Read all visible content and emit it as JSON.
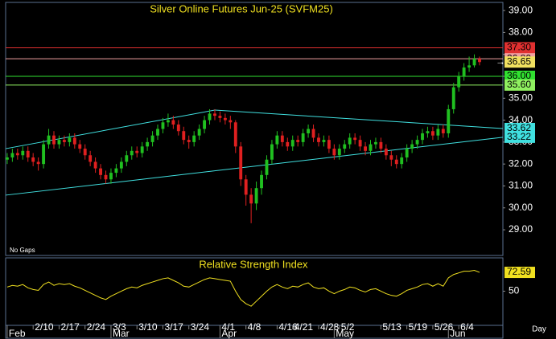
{
  "chart_data": {
    "type": "candlestick",
    "title": "Silver Online Futures Jun-25 (SVFM25)",
    "note": "No Gaps",
    "x_label": "Day",
    "xlim": [
      -0.3,
      95.5
    ],
    "date_ticks": [
      {
        "value": 5,
        "label": "2/10"
      },
      {
        "value": 10,
        "label": "2/17"
      },
      {
        "value": 15,
        "label": "2/24"
      },
      {
        "value": 20,
        "label": "3/3"
      },
      {
        "value": 25,
        "label": "3/10"
      },
      {
        "value": 30,
        "label": "3/17"
      },
      {
        "value": 35,
        "label": "3/24"
      },
      {
        "value": 41,
        "label": "4/1"
      },
      {
        "value": 46,
        "label": "4/8"
      },
      {
        "value": 52,
        "label": "4/16"
      },
      {
        "value": 55,
        "label": "4/21"
      },
      {
        "value": 60,
        "label": "4/28"
      },
      {
        "value": 64,
        "label": "5/2"
      },
      {
        "value": 72,
        "label": "5/13"
      },
      {
        "value": 77,
        "label": "5/19"
      },
      {
        "value": 82,
        "label": "5/26"
      },
      {
        "value": 87,
        "label": "6/4"
      }
    ],
    "month_ticks": [
      {
        "value": 0,
        "label": "Feb"
      },
      {
        "value": 20,
        "label": "Mar"
      },
      {
        "value": 41,
        "label": "Apr"
      },
      {
        "value": 63,
        "label": "May"
      },
      {
        "value": 85,
        "label": "Jun"
      }
    ],
    "ylim": [
      27.83,
      39.37
    ],
    "yticks": [
      {
        "value": 39,
        "label": "39.00"
      },
      {
        "value": 38,
        "label": "38.00"
      },
      {
        "value": 37,
        "label": "37.00"
      },
      {
        "value": 36,
        "label": "36.00"
      },
      {
        "value": 35,
        "label": "35.00"
      },
      {
        "value": 34,
        "label": "34.00"
      },
      {
        "value": 33,
        "label": "33.00"
      },
      {
        "value": 32,
        "label": "32.00"
      },
      {
        "value": 31,
        "label": "31.00"
      },
      {
        "value": 30,
        "label": "30.00"
      },
      {
        "value": 29,
        "label": "29.00"
      }
    ],
    "up_color": "#20c020",
    "down_color": "#e02020",
    "open": [
      32.2,
      32.3,
      32.5,
      32.4,
      32.6,
      32.3,
      32.1,
      32.0,
      32.9,
      33.3,
      32.9,
      33.1,
      33.0,
      33.2,
      32.9,
      32.7,
      32.4,
      32.1,
      31.8,
      31.5,
      31.3,
      31.6,
      31.8,
      32.1,
      32.4,
      32.6,
      32.5,
      32.8,
      33.0,
      33.3,
      33.6,
      33.9,
      34.0,
      33.8,
      33.5,
      33.1,
      33.0,
      33.3,
      33.6,
      34.0,
      34.3,
      34.2,
      34.1,
      34.0,
      33.9,
      32.8,
      31.3,
      30.6,
      30.2,
      30.9,
      31.5,
      32.2,
      32.9,
      33.3,
      33.0,
      32.8,
      33.1,
      33.0,
      33.4,
      33.6,
      33.2,
      33.0,
      33.1,
      32.7,
      32.4,
      32.7,
      32.9,
      33.2,
      33.1,
      32.8,
      32.6,
      32.9,
      33.0,
      32.7,
      32.4,
      32.2,
      32.0,
      32.3,
      32.7,
      32.9,
      33.1,
      33.4,
      33.5,
      33.3,
      33.6,
      33.4,
      34.5,
      35.5,
      36.0,
      36.4,
      36.5,
      36.8
    ],
    "high": [
      32.5,
      32.7,
      32.7,
      32.8,
      32.8,
      32.5,
      32.3,
      33.1,
      33.6,
      33.5,
      33.3,
      33.3,
      33.4,
      33.4,
      33.1,
      32.9,
      32.6,
      32.3,
      32.0,
      31.7,
      31.8,
      32.0,
      32.3,
      32.6,
      32.8,
      32.8,
      33.0,
      33.2,
      33.5,
      33.8,
      34.1,
      34.3,
      34.2,
      34.0,
      33.7,
      33.3,
      33.5,
      33.8,
      34.2,
      34.5,
      34.5,
      34.4,
      34.3,
      34.2,
      34.0,
      33.0,
      31.5,
      30.9,
      31.2,
      31.7,
      32.4,
      33.1,
      33.5,
      33.5,
      33.2,
      33.3,
      33.3,
      33.6,
      33.8,
      33.8,
      33.4,
      33.3,
      33.3,
      32.9,
      32.9,
      33.1,
      33.4,
      33.4,
      33.3,
      33.0,
      33.1,
      33.2,
      33.2,
      32.9,
      32.6,
      32.4,
      32.5,
      32.9,
      33.1,
      33.3,
      33.6,
      33.7,
      33.7,
      33.8,
      33.8,
      34.7,
      35.7,
      36.2,
      36.6,
      36.9,
      37.0,
      36.9
    ],
    "low": [
      32.0,
      32.1,
      32.2,
      32.2,
      32.1,
      31.9,
      31.7,
      31.8,
      32.7,
      32.7,
      32.7,
      32.8,
      32.8,
      32.7,
      32.5,
      32.2,
      31.9,
      31.6,
      31.3,
      31.1,
      31.1,
      31.4,
      31.6,
      31.9,
      32.2,
      32.3,
      32.3,
      32.6,
      32.8,
      33.1,
      33.4,
      33.7,
      33.6,
      33.3,
      32.9,
      32.7,
      32.8,
      33.1,
      33.4,
      33.8,
      34.0,
      33.9,
      33.8,
      33.6,
      32.5,
      31.0,
      30.1,
      29.3,
      29.9,
      30.6,
      31.3,
      32.0,
      32.7,
      32.8,
      32.6,
      32.6,
      32.8,
      32.8,
      33.2,
      33.0,
      32.8,
      32.8,
      32.5,
      32.2,
      32.2,
      32.5,
      32.7,
      32.9,
      32.6,
      32.4,
      32.4,
      32.7,
      32.5,
      32.2,
      31.9,
      31.8,
      31.8,
      32.1,
      32.5,
      32.7,
      32.9,
      33.2,
      33.1,
      33.1,
      33.2,
      33.2,
      34.3,
      35.3,
      35.8,
      36.2,
      36.4,
      36.5
    ],
    "close": [
      32.3,
      32.5,
      32.4,
      32.6,
      32.3,
      32.1,
      32.0,
      32.9,
      33.3,
      32.9,
      33.1,
      33.0,
      33.2,
      32.9,
      32.7,
      32.4,
      32.1,
      31.8,
      31.5,
      31.3,
      31.6,
      31.8,
      32.1,
      32.4,
      32.6,
      32.5,
      32.8,
      33.0,
      33.3,
      33.6,
      33.9,
      34.0,
      33.8,
      33.5,
      33.1,
      33.0,
      33.3,
      33.6,
      34.0,
      34.3,
      34.2,
      34.1,
      34.0,
      33.9,
      32.8,
      31.3,
      30.6,
      30.2,
      30.9,
      31.5,
      32.2,
      32.9,
      33.3,
      33.0,
      32.8,
      33.1,
      33.0,
      33.4,
      33.6,
      33.2,
      33.0,
      33.1,
      32.7,
      32.4,
      32.7,
      32.9,
      33.2,
      33.1,
      32.8,
      32.6,
      32.9,
      33.0,
      32.7,
      32.4,
      32.2,
      32.0,
      32.3,
      32.7,
      32.9,
      33.1,
      33.4,
      33.5,
      33.3,
      33.6,
      33.4,
      34.5,
      35.5,
      36.0,
      36.4,
      36.5,
      36.8,
      36.65
    ],
    "last_close_label": "36.65",
    "last_color": "#f0e060",
    "levels": [
      {
        "value": 37.3,
        "label": "37.30",
        "color": "#e03030"
      },
      {
        "value": 36.8,
        "label": "36.80",
        "color": "#f0a0a0"
      },
      {
        "value": 36.0,
        "label": "36.00",
        "color": "#30e030"
      },
      {
        "value": 35.6,
        "label": "35.60",
        "color": "#90f060"
      }
    ],
    "trendlines": [
      {
        "color": "#40e0e0",
        "points": [
          [
            -0.3,
            32.7
          ],
          [
            40,
            34.46
          ]
        ]
      },
      {
        "color": "#40e0e0",
        "points": [
          [
            40,
            34.46
          ],
          [
            95.5,
            33.62
          ]
        ],
        "end_label": "33.62"
      },
      {
        "color": "#40e0e0",
        "points": [
          [
            -0.3,
            30.58
          ],
          [
            95.5,
            33.22
          ]
        ],
        "end_label": "33.22"
      }
    ],
    "rsi": {
      "title": "Relative Strength Index",
      "color": "#f0e020",
      "ylim": [
        9,
        90
      ],
      "yticks": [
        50
      ],
      "values": [
        55,
        57,
        56,
        58,
        54,
        52,
        51,
        58,
        61,
        57,
        59,
        58,
        59,
        56,
        54,
        51,
        48,
        45,
        42,
        40,
        44,
        47,
        50,
        53,
        55,
        54,
        57,
        59,
        61,
        63,
        65,
        66,
        63,
        60,
        56,
        55,
        58,
        61,
        64,
        66,
        65,
        64,
        63,
        62,
        50,
        40,
        35,
        32,
        38,
        44,
        50,
        55,
        58,
        55,
        53,
        56,
        55,
        58,
        60,
        55,
        53,
        54,
        50,
        47,
        50,
        52,
        55,
        54,
        51,
        49,
        52,
        53,
        50,
        47,
        45,
        44,
        47,
        51,
        53,
        55,
        58,
        59,
        56,
        59,
        56,
        66,
        70,
        72,
        74,
        74,
        75,
        72.59
      ],
      "last_label": "72.59"
    }
  }
}
